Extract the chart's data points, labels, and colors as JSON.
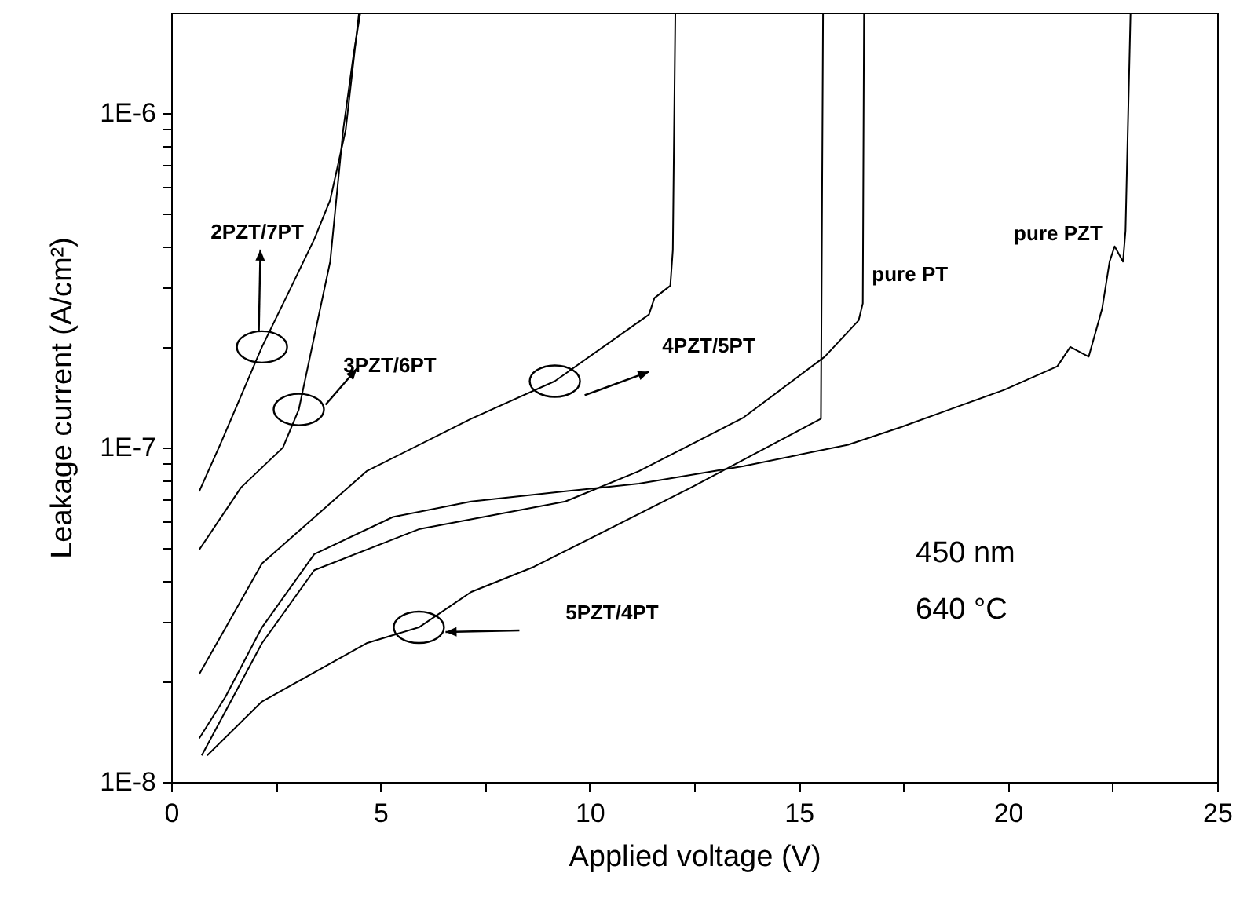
{
  "chart_data": {
    "type": "line",
    "xlabel": "Applied voltage (V)",
    "ylabel": "Leakage current (A/cm²)",
    "log": "y",
    "xlim": [
      0,
      25
    ],
    "ylim": [
      1e-08,
      2e-06
    ],
    "xticks": [
      0,
      {
        "value": 2.5,
        "label": null
      },
      5,
      {
        "value": 7.5,
        "label": null
      },
      10,
      {
        "value": 12.5,
        "label": null
      },
      15,
      {
        "value": 17.5,
        "label": null
      },
      20,
      {
        "value": 22.5,
        "label": null
      },
      25
    ],
    "yticks": [
      {
        "value": 1e-08,
        "label": "1E-8"
      },
      {
        "value": 2e-08,
        "label": null
      },
      {
        "value": 3e-08,
        "label": null
      },
      {
        "value": 4e-08,
        "label": null
      },
      {
        "value": 5e-08,
        "label": null
      },
      {
        "value": 6e-08,
        "label": null
      },
      {
        "value": 7e-08,
        "label": null
      },
      {
        "value": 8e-08,
        "label": null
      },
      {
        "value": 9e-08,
        "label": null
      },
      {
        "value": 1e-07,
        "label": "1E-7"
      },
      {
        "value": 2e-07,
        "label": null
      },
      {
        "value": 3e-07,
        "label": null
      },
      {
        "value": 4e-07,
        "label": null
      },
      {
        "value": 5e-07,
        "label": null
      },
      {
        "value": 6e-07,
        "label": null
      },
      {
        "value": 7e-07,
        "label": null
      },
      {
        "value": 8e-07,
        "label": null
      },
      {
        "value": 9e-07,
        "label": null
      },
      {
        "value": 1e-06,
        "label": "1E-6"
      }
    ],
    "grid": false,
    "line_style": "solid",
    "marker": "none",
    "annotations": [
      "450 nm",
      "640 °C"
    ],
    "series": [
      {
        "name": "2PZT/7PT",
        "color": "#000000",
        "x": [
          0.67,
          1.17,
          2.17,
          2.8,
          3.42,
          3.8,
          4.17,
          4.49
        ],
        "values": [
          7.4e-08,
          1.02e-07,
          2e-07,
          2.9e-07,
          4.2e-07,
          5.5e-07,
          8.9e-07,
          2e-06
        ]
      },
      {
        "name": "3PZT/6PT",
        "color": "#000000",
        "x": [
          0.67,
          1.67,
          2.67,
          3.05,
          3.8,
          4.11,
          4.36,
          4.52
        ],
        "values": [
          4.95e-08,
          7.6e-08,
          1e-07,
          1.3e-07,
          3.6e-07,
          8.9e-07,
          1.5e-06,
          2e-06
        ]
      },
      {
        "name": "4PZT/5PT",
        "color": "#000000",
        "x": [
          0.67,
          2.17,
          4.67,
          7.17,
          9.17,
          11.42,
          11.55,
          11.93,
          11.99,
          12.05
        ],
        "values": [
          2.1e-08,
          4.5e-08,
          8.5e-08,
          1.22e-07,
          1.58e-07,
          2.5e-07,
          2.8e-07,
          3.05e-07,
          3.9e-07,
          2e-06
        ]
      },
      {
        "name": "5PZT/4PT",
        "color": "#000000",
        "x": [
          0.86,
          2.17,
          4.67,
          5.92,
          7.17,
          8.67,
          12.43,
          15.53,
          15.58
        ],
        "values": [
          1.2e-08,
          1.74e-08,
          2.6e-08,
          2.9e-08,
          3.7e-08,
          4.4e-08,
          7.6e-08,
          1.22e-07,
          2e-06
        ]
      },
      {
        "name": "pure PT",
        "color": "#000000",
        "x": [
          0.73,
          2.17,
          3.42,
          5.92,
          9.42,
          11.18,
          13.68,
          15.62,
          16.43,
          16.53,
          16.56
        ],
        "values": [
          1.2e-08,
          2.6e-08,
          4.3e-08,
          5.7e-08,
          6.9e-08,
          8.5e-08,
          1.23e-07,
          1.87e-07,
          2.4e-07,
          2.7e-07,
          2e-06
        ]
      },
      {
        "name": "pure PZT",
        "color": "#000000",
        "x": [
          0.67,
          1.3,
          2.17,
          3.42,
          5.3,
          7.17,
          9.42,
          11.18,
          13.68,
          16.18,
          17.43,
          18.68,
          19.92,
          21.18,
          21.49,
          21.93,
          22.25,
          22.43,
          22.55,
          22.75,
          22.81,
          22.93
        ],
        "values": [
          1.35e-08,
          1.8e-08,
          2.9e-08,
          4.8e-08,
          6.2e-08,
          6.9e-08,
          7.4e-08,
          7.8e-08,
          8.8e-08,
          1.02e-07,
          1.15e-07,
          1.31e-07,
          1.49e-07,
          1.75e-07,
          2e-07,
          1.87e-07,
          2.6e-07,
          3.6e-07,
          4e-07,
          3.6e-07,
          4.45e-07,
          2e-06
        ]
      }
    ]
  }
}
